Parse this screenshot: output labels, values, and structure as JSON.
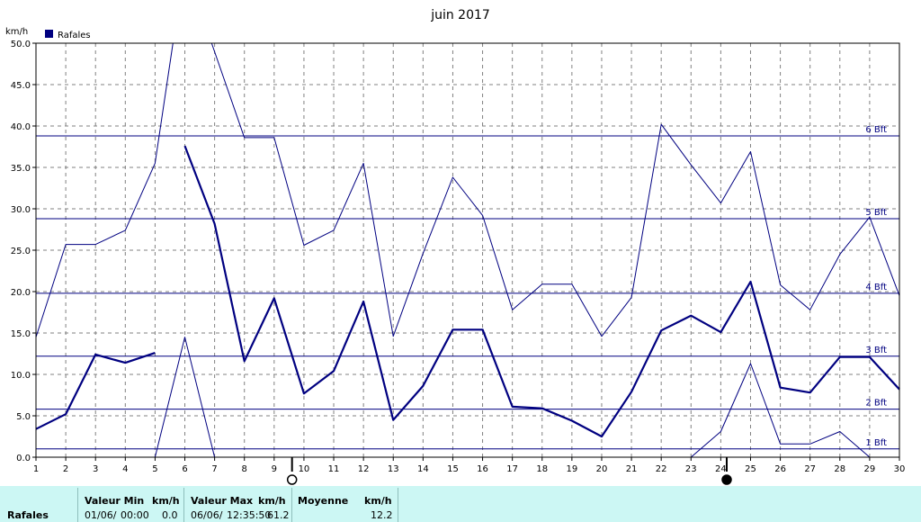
{
  "chart_data": {
    "type": "line",
    "title": "juin 2017",
    "ylabel": "km/h",
    "xlabel": "",
    "ylim": [
      0,
      50
    ],
    "xlim": [
      1,
      30
    ],
    "y_ticks": [
      "0.0",
      "5.0",
      "10.0",
      "15.0",
      "20.0",
      "25.0",
      "30.0",
      "35.0",
      "40.0",
      "45.0",
      "50.0"
    ],
    "x_ticks": [
      "1",
      "2",
      "3",
      "4",
      "5",
      "6",
      "7",
      "8",
      "9",
      "10",
      "11",
      "12",
      "13",
      "14",
      "15",
      "16",
      "17",
      "18",
      "19",
      "20",
      "21",
      "22",
      "23",
      "24",
      "25",
      "26",
      "27",
      "28",
      "29",
      "30"
    ],
    "grid": true,
    "legend": {
      "position": "top-left",
      "entries": [
        "Rafales"
      ]
    },
    "colors": {
      "series": "#000080",
      "grid": "#808080"
    },
    "beaufort_lines": [
      {
        "label": "1 Bft",
        "value": 1.0
      },
      {
        "label": "2 Bft",
        "value": 5.8
      },
      {
        "label": "3 Bft",
        "value": 12.2
      },
      {
        "label": "4 Bft",
        "value": 19.8
      },
      {
        "label": "5 Bft",
        "value": 28.8
      },
      {
        "label": "6 Bft",
        "value": 38.8
      }
    ],
    "moon_phases": [
      {
        "x": 9.6,
        "phase": "full"
      },
      {
        "x": 24.2,
        "phase": "new"
      }
    ],
    "series": [
      {
        "name": "Rafales",
        "role": "mean",
        "x": [
          1,
          2,
          3,
          4,
          5,
          6,
          7,
          8,
          9,
          10,
          11,
          12,
          13,
          14,
          15,
          16,
          17,
          18,
          19,
          20,
          21,
          22,
          23,
          24,
          25,
          26,
          27,
          28,
          29,
          30
        ],
        "values": [
          3.4,
          5.2,
          12.4,
          11.4,
          12.6,
          null,
          28.2,
          11.6,
          19.2,
          7.7,
          10.4,
          18.8,
          4.5,
          8.6,
          15.4,
          15.4,
          6.1,
          5.9,
          4.4,
          2.5,
          7.9,
          15.3,
          17.1,
          15.1,
          21.2,
          8.4,
          7.8,
          12.1,
          12.1,
          8.2
        ],
        "segments": [
          [
            1,
            5
          ],
          [
            6,
            30
          ]
        ],
        "extra_points": [
          [
            6,
            37.6
          ]
        ]
      },
      {
        "name": "Rafales",
        "role": "max",
        "x": [
          1,
          2,
          3,
          4,
          5,
          5.6,
          6.9,
          8,
          9,
          10,
          11,
          12,
          13,
          14,
          15,
          16,
          17,
          18,
          19,
          20,
          21,
          22,
          23,
          24,
          25,
          26,
          27,
          28,
          29,
          30
        ],
        "values": [
          14.5,
          25.7,
          25.7,
          27.4,
          35.5,
          50,
          50,
          38.6,
          38.6,
          25.6,
          27.4,
          35.5,
          14.6,
          24.6,
          33.8,
          29.2,
          17.8,
          20.9,
          20.9,
          14.6,
          19.3,
          40.2,
          35.3,
          30.7,
          36.9,
          20.8,
          17.8,
          24.5,
          29.0,
          19.5
        ]
      },
      {
        "name": "Rafales",
        "role": "min",
        "segments_data": [
          {
            "x": [
              5,
              6,
              7
            ],
            "values": [
              0,
              14.5,
              0
            ]
          },
          {
            "x": [
              23,
              24,
              25,
              26,
              27,
              28,
              29
            ],
            "values": [
              0,
              3.1,
              11.3,
              1.6,
              1.6,
              3.1,
              0
            ]
          }
        ]
      }
    ]
  },
  "footer": {
    "row_label": "Rafales",
    "min": {
      "header": "Valeur Min",
      "unit": "km/h",
      "date": "01/06/",
      "time": "00:00",
      "value": "0.0"
    },
    "max": {
      "header": "Valeur Max",
      "unit": "km/h",
      "date": "06/06/",
      "time": "12:35:50",
      "value": "61.2"
    },
    "avg": {
      "header": "Moyenne",
      "unit": "km/h",
      "value": "12.2"
    }
  }
}
